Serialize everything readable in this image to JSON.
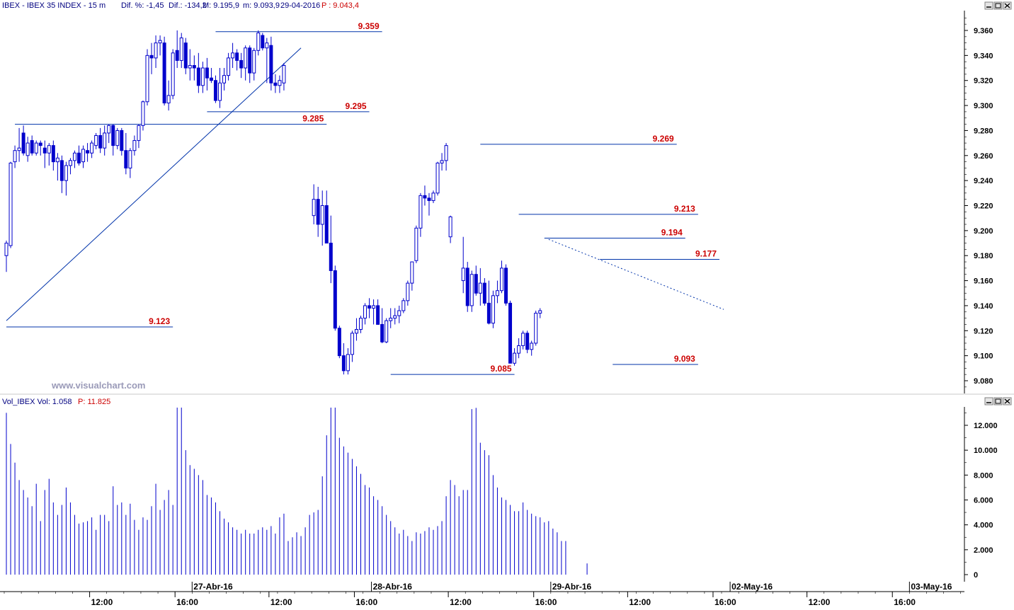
{
  "header": {
    "symbol": "IBEX - IBEX 35 INDEX - 15 m",
    "dif_pct": "Dif. %: -1,45",
    "dif": "Dif.: -134,2",
    "high": "M: 9.195,9",
    "low": "m: 9.093,9",
    "date": "29-04-2016",
    "last": "P : 9.043,4"
  },
  "watermark": "www.visualchart.com",
  "volume_header": {
    "name": "Vol_IBEX Vol: 1.058",
    "last": "P: 11.825"
  },
  "window_icons": [
    "minimize-icon",
    "restore-icon",
    "close-icon"
  ],
  "colors": {
    "candle": "#0000cc",
    "level_line": "#0033aa",
    "level_label": "#cc0000",
    "axis_text": "#000000",
    "header_text": "#000080",
    "header_value": "#cc0000"
  },
  "chart_data": [
    {
      "type": "candlestick",
      "title": "IBEX - IBEX 35 INDEX - 15 m",
      "ylim": [
        9070,
        9370
      ],
      "y_ticks": [
        "9.360",
        "9.340",
        "9.320",
        "9.300",
        "9.280",
        "9.260",
        "9.240",
        "9.220",
        "9.200",
        "9.180",
        "9.160",
        "9.140",
        "9.120",
        "9.100",
        "9.080"
      ],
      "y_tick_values": [
        9360,
        9340,
        9320,
        9300,
        9280,
        9260,
        9240,
        9220,
        9200,
        9180,
        9160,
        9140,
        9120,
        9100,
        9080
      ],
      "x_time_labels": [
        {
          "label": "12:00",
          "bar": 19.5
        },
        {
          "label": "16:00",
          "bar": 39.5
        },
        {
          "label": "12:00",
          "bar": 61.5
        },
        {
          "label": "16:00",
          "bar": 81.5
        },
        {
          "label": "12:00",
          "bar": 103.5
        },
        {
          "label": "16:00",
          "bar": 123.5
        },
        {
          "label": "12:00",
          "bar": 145.5
        },
        {
          "label": "16:00",
          "bar": 165.5
        },
        {
          "label": "12:00",
          "bar": 187.5
        },
        {
          "label": "16:00",
          "bar": 207.5
        }
      ],
      "x_date_labels": [
        {
          "label": "27-Abr-16",
          "bar": 43.5
        },
        {
          "label": "28-Abr-16",
          "bar": 85.5
        },
        {
          "label": "29-Abr-16",
          "bar": 127.5
        },
        {
          "label": "02-May-16",
          "bar": 169.5
        },
        {
          "label": "03-May-16",
          "bar": 211.5
        }
      ],
      "levels": [
        {
          "label": "9.359",
          "value": 9359,
          "from_bar": 49,
          "to_bar": 88
        },
        {
          "label": "9.295",
          "value": 9295,
          "from_bar": 47,
          "to_bar": 85
        },
        {
          "label": "9.285",
          "value": 9285,
          "from_bar": 2,
          "to_bar": 75
        },
        {
          "label": "9.269",
          "value": 9269,
          "from_bar": 111,
          "to_bar": 157
        },
        {
          "label": "9.213",
          "value": 9213,
          "from_bar": 120,
          "to_bar": 162
        },
        {
          "label": "9.194",
          "value": 9194,
          "from_bar": 126,
          "to_bar": 159
        },
        {
          "label": "9.177",
          "value": 9177,
          "from_bar": 139,
          "to_bar": 167
        },
        {
          "label": "9.123",
          "value": 9123,
          "from_bar": 0,
          "to_bar": 39
        },
        {
          "label": "9.093",
          "value": 9093,
          "from_bar": 142,
          "to_bar": 162
        },
        {
          "label": "9.085",
          "value": 9085,
          "from_bar": 90,
          "to_bar": 119
        }
      ],
      "trendlines": [
        {
          "style": "solid",
          "from": {
            "bar": 0,
            "value": 9128
          },
          "to": {
            "bar": 69,
            "value": 9346
          }
        },
        {
          "style": "dotted",
          "from": {
            "bar": 127,
            "value": 9193
          },
          "to": {
            "bar": 168,
            "value": 9137
          }
        }
      ],
      "ohlc": [
        [
          9180,
          9192,
          9167,
          9190
        ],
        [
          9188,
          9255,
          9186,
          9254
        ],
        [
          9255,
          9268,
          9250,
          9264
        ],
        [
          9264,
          9282,
          9255,
          9266
        ],
        [
          9278,
          9284,
          9260,
          9262
        ],
        [
          9260,
          9275,
          9255,
          9270
        ],
        [
          9272,
          9276,
          9260,
          9262
        ],
        [
          9262,
          9272,
          9260,
          9270
        ],
        [
          9270,
          9272,
          9260,
          9268
        ],
        [
          9266,
          9272,
          9250,
          9262
        ],
        [
          9262,
          9270,
          9252,
          9268
        ],
        [
          9268,
          9272,
          9248,
          9255
        ],
        [
          9255,
          9262,
          9240,
          9258
        ],
        [
          9256,
          9260,
          9230,
          9240
        ],
        [
          9240,
          9255,
          9228,
          9252
        ],
        [
          9252,
          9258,
          9245,
          9256
        ],
        [
          9256,
          9264,
          9250,
          9262
        ],
        [
          9262,
          9268,
          9252,
          9254
        ],
        [
          9255,
          9268,
          9250,
          9265
        ],
        [
          9264,
          9270,
          9255,
          9262
        ],
        [
          9262,
          9272,
          9258,
          9270
        ],
        [
          9268,
          9278,
          9265,
          9276
        ],
        [
          9276,
          9282,
          9262,
          9266
        ],
        [
          9266,
          9284,
          9260,
          9278
        ],
        [
          9278,
          9285,
          9270,
          9284
        ],
        [
          9284,
          9285,
          9260,
          9268
        ],
        [
          9268,
          9282,
          9265,
          9280
        ],
        [
          9280,
          9282,
          9260,
          9264
        ],
        [
          9264,
          9278,
          9245,
          9250
        ],
        [
          9250,
          9266,
          9242,
          9264
        ],
        [
          9264,
          9276,
          9260,
          9272
        ],
        [
          9272,
          9285,
          9266,
          9284
        ],
        [
          9284,
          9304,
          9280,
          9303
        ],
        [
          9303,
          9345,
          9300,
          9340
        ],
        [
          9340,
          9350,
          9325,
          9338
        ],
        [
          9338,
          9356,
          9330,
          9350
        ],
        [
          9350,
          9356,
          9340,
          9352
        ],
        [
          9350,
          9355,
          9300,
          9302
        ],
        [
          9302,
          9320,
          9296,
          9308
        ],
        [
          9308,
          9345,
          9305,
          9342
        ],
        [
          9344,
          9360,
          9330,
          9336
        ],
        [
          9336,
          9358,
          9330,
          9354
        ],
        [
          9350,
          9354,
          9325,
          9330
        ],
        [
          9330,
          9345,
          9320,
          9332
        ],
        [
          9332,
          9340,
          9320,
          9330
        ],
        [
          9330,
          9342,
          9310,
          9316
        ],
        [
          9316,
          9335,
          9310,
          9330
        ],
        [
          9330,
          9338,
          9312,
          9322
        ],
        [
          9322,
          9330,
          9318,
          9320
        ],
        [
          9320,
          9324,
          9302,
          9304
        ],
        [
          9304,
          9330,
          9298,
          9318
        ],
        [
          9318,
          9330,
          9312,
          9324
        ],
        [
          9324,
          9342,
          9320,
          9338
        ],
        [
          9338,
          9350,
          9330,
          9342
        ],
        [
          9342,
          9345,
          9328,
          9336
        ],
        [
          9336,
          9342,
          9322,
          9330
        ],
        [
          9330,
          9348,
          9320,
          9346
        ],
        [
          9346,
          9348,
          9318,
          9326
        ],
        [
          9326,
          9346,
          9320,
          9344
        ],
        [
          9344,
          9360,
          9340,
          9358
        ],
        [
          9356,
          9358,
          9344,
          9346
        ],
        [
          9346,
          9354,
          9318,
          9350
        ],
        [
          9348,
          9355,
          9312,
          9318
        ],
        [
          9318,
          9325,
          9310,
          9316
        ],
        [
          9316,
          9324,
          9310,
          9320
        ],
        [
          9318,
          9334,
          9312,
          9332
        ],
        null,
        null,
        null,
        null,
        null,
        null,
        [
          9212,
          9237,
          9205,
          9225
        ],
        [
          9225,
          9235,
          9195,
          9205
        ],
        [
          9205,
          9232,
          9188,
          9220
        ],
        [
          9220,
          9232,
          9190,
          9190
        ],
        [
          9190,
          9212,
          9158,
          9168
        ],
        [
          9168,
          9172,
          9120,
          9122
        ],
        [
          9122,
          9124,
          9098,
          9100
        ],
        [
          9100,
          9110,
          9085,
          9088
        ],
        [
          9088,
          9106,
          9085,
          9101
        ],
        [
          9101,
          9120,
          9095,
          9118
        ],
        [
          9118,
          9130,
          9112,
          9121
        ],
        [
          9121,
          9132,
          9118,
          9130
        ],
        [
          9130,
          9142,
          9125,
          9140
        ],
        [
          9140,
          9146,
          9130,
          9138
        ],
        [
          9138,
          9145,
          9125,
          9140
        ],
        [
          9140,
          9145,
          9128,
          9125
        ],
        [
          9125,
          9138,
          9110,
          9111
        ],
        [
          9111,
          9130,
          9110,
          9128
        ],
        [
          9128,
          9138,
          9122,
          9130
        ],
        [
          9130,
          9138,
          9125,
          9132
        ],
        [
          9132,
          9140,
          9126,
          9136
        ],
        [
          9136,
          9146,
          9134,
          9144
        ],
        [
          9144,
          9160,
          9140,
          9158
        ],
        [
          9158,
          9175,
          9152,
          9175
        ],
        [
          9176,
          9204,
          9174,
          9202
        ],
        [
          9202,
          9230,
          9195,
          9228
        ],
        [
          9228,
          9236,
          9220,
          9226
        ],
        [
          9226,
          9230,
          9212,
          9224
        ],
        [
          9224,
          9232,
          9222,
          9230
        ],
        [
          9230,
          9255,
          9228,
          9254
        ],
        [
          9254,
          9262,
          9248,
          9256
        ],
        [
          9256,
          9270,
          9248,
          9268
        ],
        [
          9195,
          9212,
          9190,
          9211
        ],
        null,
        null,
        [
          9160,
          9195,
          9150,
          9170
        ],
        [
          9170,
          9175,
          9135,
          9140
        ],
        [
          9140,
          9168,
          9135,
          9165
        ],
        [
          9165,
          9172,
          9148,
          9150
        ],
        [
          9150,
          9170,
          9140,
          9158
        ],
        [
          9158,
          9162,
          9140,
          9142
        ],
        [
          9142,
          9160,
          9125,
          9126
        ],
        [
          9126,
          9152,
          9122,
          9148
        ],
        [
          9148,
          9160,
          9142,
          9152
        ],
        [
          9152,
          9176,
          9150,
          9170
        ],
        [
          9170,
          9173,
          9140,
          9142
        ],
        [
          9142,
          9144,
          9094,
          9094
        ],
        [
          9094,
          9106,
          9092,
          9102
        ],
        [
          9102,
          9114,
          9098,
          9108
        ],
        [
          9108,
          9120,
          9105,
          9118
        ],
        [
          9118,
          9120,
          9102,
          9105
        ],
        [
          9105,
          9112,
          9100,
          9110
        ],
        [
          9110,
          9136,
          9108,
          9134
        ],
        [
          9134,
          9138,
          9130,
          9136
        ]
      ],
      "notes": "ohlc values are [open, high, low, close] per 15-minute bar, in index points; null marks bars hidden behind the chart gap."
    },
    {
      "type": "bar",
      "title": "Vol_IBEX Vol: 1.058",
      "ylim": [
        0,
        13500
      ],
      "y_ticks": [
        "12.000",
        "10.000",
        "8.000",
        "6.000",
        "4.000",
        "2.000",
        "0"
      ],
      "y_tick_values": [
        12000,
        10000,
        8000,
        6000,
        4000,
        2000,
        0
      ],
      "values": [
        13000,
        10500,
        9000,
        7600,
        6800,
        6200,
        5500,
        7300,
        4300,
        6800,
        7700,
        5800,
        4800,
        5600,
        7000,
        5800,
        4800,
        4100,
        4200,
        4300,
        4600,
        3600,
        4800,
        4800,
        4300,
        7100,
        5600,
        5800,
        4800,
        5700,
        4400,
        3600,
        4600,
        4400,
        5500,
        7300,
        5200,
        6000,
        6800,
        5600,
        13500,
        13500,
        10000,
        8800,
        8500,
        8000,
        7600,
        6400,
        6200,
        5800,
        5100,
        4500,
        4200,
        3800,
        3600,
        3300,
        3600,
        3300,
        3300,
        3600,
        3800,
        3600,
        3900,
        3300,
        4600,
        4900,
        2700,
        3000,
        3400,
        3100,
        3800,
        4800,
        5000,
        5200,
        7900,
        11200,
        13500,
        13500,
        11000,
        10300,
        9800,
        9300,
        8700,
        8100,
        7200,
        7000,
        6300,
        6000,
        5500,
        4800,
        4300,
        3800,
        3300,
        3600,
        3100,
        2700,
        3400,
        3300,
        3500,
        3800,
        3600,
        3900,
        4300,
        6300,
        7600,
        7200,
        6300,
        6800,
        6800,
        13300,
        13400,
        10600,
        10000,
        9600,
        8000,
        7000,
        6200,
        6000,
        5600,
        5100,
        5100,
        5800,
        5200,
        4900,
        4700,
        4600,
        4200,
        4300,
        3700,
        3400,
        2700,
        2700,
        0,
        0,
        0,
        0,
        900
      ]
    }
  ]
}
